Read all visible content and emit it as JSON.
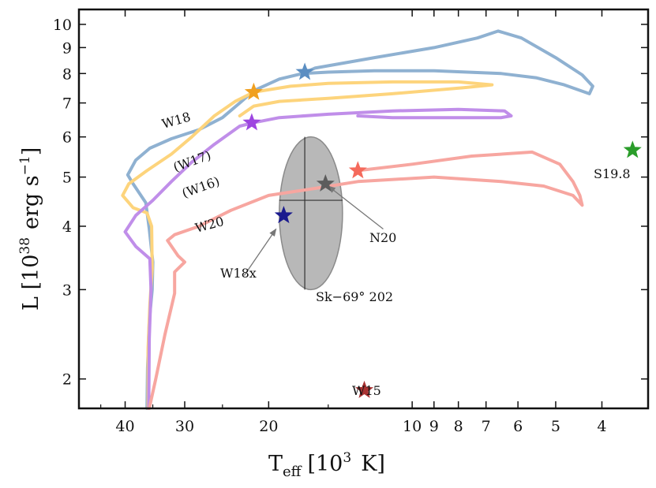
{
  "chart_data": {
    "type": "line",
    "title": "",
    "xlabel": "T_eff [10^3 K]",
    "ylabel": "L [10^38 erg s^-1]",
    "x_scale": "log-reversed",
    "y_scale": "log",
    "xlim": [
      50,
      3.2
    ],
    "ylim": [
      1.75,
      10.7
    ],
    "x_ticks": [
      {
        "value": 40,
        "label": "40"
      },
      {
        "value": 30,
        "label": "30"
      },
      {
        "value": 20,
        "label": "20"
      },
      {
        "value": 10,
        "label": "10"
      },
      {
        "value": 9,
        "label": "9"
      },
      {
        "value": 8,
        "label": "8"
      },
      {
        "value": 7,
        "label": "7"
      },
      {
        "value": 6,
        "label": "6"
      },
      {
        "value": 5,
        "label": "5"
      },
      {
        "value": 4,
        "label": "4"
      }
    ],
    "y_ticks": [
      {
        "value": 2,
        "label": "2"
      },
      {
        "value": 3,
        "label": "3"
      },
      {
        "value": 4,
        "label": "4"
      },
      {
        "value": 5,
        "label": "5"
      },
      {
        "value": 6,
        "label": "6"
      },
      {
        "value": 7,
        "label": "7"
      },
      {
        "value": 8,
        "label": "8"
      },
      {
        "value": 9,
        "label": "9"
      },
      {
        "value": 10,
        "label": "10"
      }
    ],
    "series": [
      {
        "name": "W18",
        "label": "W18",
        "color": "#8fb1d1",
        "points": [
          [
            36,
            1.75
          ],
          [
            35.9,
            2.1
          ],
          [
            35.6,
            2.6
          ],
          [
            35.1,
            3.0
          ],
          [
            35,
            3.4
          ],
          [
            35.6,
            3.95
          ],
          [
            36.2,
            4.45
          ],
          [
            38.5,
            4.85
          ],
          [
            39.5,
            5.05
          ],
          [
            38,
            5.4
          ],
          [
            35.5,
            5.7
          ],
          [
            32,
            5.95
          ],
          [
            28,
            6.2
          ],
          [
            25,
            6.55
          ],
          [
            23,
            7.0
          ],
          [
            21.5,
            7.4
          ],
          [
            19,
            7.8
          ],
          [
            17,
            8.0
          ],
          [
            15,
            8.05
          ],
          [
            12,
            8.1
          ],
          [
            9,
            8.1
          ],
          [
            6.5,
            8.0
          ],
          [
            5.5,
            7.85
          ],
          [
            4.8,
            7.6
          ],
          [
            4.25,
            7.3
          ],
          [
            4.18,
            7.55
          ],
          [
            4.4,
            7.95
          ],
          [
            5,
            8.6
          ],
          [
            5.9,
            9.4
          ],
          [
            6.6,
            9.7
          ],
          [
            7.3,
            9.4
          ],
          [
            9,
            9.0
          ],
          [
            12,
            8.6
          ],
          [
            16,
            8.2
          ],
          [
            17,
            8.0
          ]
        ]
      },
      {
        "name": "W17",
        "label": "(W17)",
        "color": "#fdd47c",
        "points": [
          [
            35.8,
            1.75
          ],
          [
            35.8,
            2.3
          ],
          [
            35.5,
            2.8
          ],
          [
            35.1,
            3.3
          ],
          [
            35.2,
            4.0
          ],
          [
            36,
            4.25
          ],
          [
            38.5,
            4.35
          ],
          [
            40.5,
            4.6
          ],
          [
            39.3,
            4.85
          ],
          [
            36,
            5.15
          ],
          [
            32,
            5.55
          ],
          [
            29,
            6.0
          ],
          [
            26,
            6.6
          ],
          [
            23.5,
            7.05
          ],
          [
            21.5,
            7.35
          ],
          [
            18,
            7.55
          ],
          [
            15,
            7.65
          ],
          [
            11,
            7.7
          ],
          [
            8,
            7.7
          ],
          [
            6.8,
            7.6
          ],
          [
            7.8,
            7.5
          ],
          [
            11,
            7.3
          ],
          [
            15,
            7.15
          ],
          [
            19,
            7.05
          ],
          [
            21.5,
            6.9
          ],
          [
            23,
            6.6
          ]
        ]
      },
      {
        "name": "W16",
        "label": "(W16)",
        "color": "#c08ee9",
        "points": [
          [
            35.7,
            1.75
          ],
          [
            35.6,
            2.4
          ],
          [
            35.3,
            3.0
          ],
          [
            35.5,
            3.45
          ],
          [
            38,
            3.65
          ],
          [
            40,
            3.9
          ],
          [
            38,
            4.2
          ],
          [
            35,
            4.5
          ],
          [
            32,
            4.9
          ],
          [
            29,
            5.35
          ],
          [
            26,
            5.8
          ],
          [
            23,
            6.3
          ],
          [
            21.5,
            6.4
          ],
          [
            19,
            6.55
          ],
          [
            15,
            6.65
          ],
          [
            11,
            6.75
          ],
          [
            8,
            6.8
          ],
          [
            6.4,
            6.75
          ],
          [
            6.2,
            6.6
          ],
          [
            6.5,
            6.55
          ],
          [
            8.5,
            6.55
          ],
          [
            11,
            6.55
          ],
          [
            13,
            6.6
          ]
        ]
      },
      {
        "name": "W20",
        "label": "W20",
        "color": "#f7a6a0",
        "points": [
          [
            35.6,
            1.75
          ],
          [
            34.5,
            2.0
          ],
          [
            33,
            2.45
          ],
          [
            31.5,
            2.95
          ],
          [
            31.5,
            3.25
          ],
          [
            30,
            3.4
          ],
          [
            31,
            3.5
          ],
          [
            32.6,
            3.75
          ],
          [
            31.5,
            3.85
          ],
          [
            28,
            4.0
          ],
          [
            24,
            4.3
          ],
          [
            20,
            4.6
          ],
          [
            16,
            4.75
          ],
          [
            13,
            4.9
          ],
          [
            9,
            5.0
          ],
          [
            6.5,
            4.9
          ],
          [
            5.3,
            4.8
          ],
          [
            4.6,
            4.6
          ],
          [
            4.4,
            4.4
          ],
          [
            4.45,
            4.6
          ],
          [
            4.6,
            4.9
          ],
          [
            4.9,
            5.3
          ],
          [
            5.6,
            5.6
          ],
          [
            7.5,
            5.5
          ],
          [
            10,
            5.3
          ],
          [
            13,
            5.15
          ]
        ]
      }
    ],
    "stars": [
      {
        "name": "W18-star",
        "teff": 16.8,
        "L": 8.05,
        "color": "#5b8ec2",
        "label": ""
      },
      {
        "name": "W17-star",
        "teff": 21.5,
        "L": 7.35,
        "color": "#f0a020",
        "label": ""
      },
      {
        "name": "W16-star",
        "teff": 21.7,
        "L": 6.4,
        "color": "#9d45e0",
        "label": ""
      },
      {
        "name": "W20-star",
        "teff": 13.0,
        "L": 5.15,
        "color": "#f56a5c",
        "label": ""
      },
      {
        "name": "N20-star",
        "teff": 15.2,
        "L": 4.85,
        "color": "#5c5c5c",
        "label": ""
      },
      {
        "name": "W18x-star",
        "teff": 18.6,
        "L": 4.2,
        "color": "#1a1a8e",
        "label": ""
      },
      {
        "name": "S19.8-star",
        "teff": 3.45,
        "L": 5.65,
        "color": "#2a9d2a",
        "label": "S19.8"
      },
      {
        "name": "W15-star",
        "teff": 12.6,
        "L": 1.9,
        "color": "#a83232",
        "label": "W15"
      }
    ],
    "error_ellipse": {
      "label": "Sk−69° 202",
      "center_teff": 16.8,
      "center_L": 4.5,
      "teff_range": [
        19.0,
        14.0
      ],
      "L_range": [
        3.0,
        6.0
      ],
      "color": "#b8b8b8"
    },
    "annotations": [
      {
        "text": "N20",
        "from": [
          11.5,
          3.95
        ],
        "to": [
          15.0,
          4.8
        ]
      },
      {
        "text": "W18x",
        "from": [
          22.5,
          3.2
        ],
        "to": [
          19.3,
          3.95
        ]
      }
    ]
  },
  "labels": {
    "w18": "W18",
    "w17": "(W17)",
    "w16": "(W16)",
    "w20": "W20",
    "n20": "N20",
    "w18x": "W18x",
    "sk": "Sk−69° 202",
    "s198": "S19.8",
    "w15": "W15"
  },
  "axes": {
    "x_main": "T",
    "x_sub": "eff",
    "x_bracket_open": "[10",
    "x_exp": "3",
    "x_unit": "K]",
    "y_main": "L [10",
    "y_exp": "38",
    "y_unit": "erg s",
    "y_unit_exp": "−1",
    "y_close": "]"
  }
}
